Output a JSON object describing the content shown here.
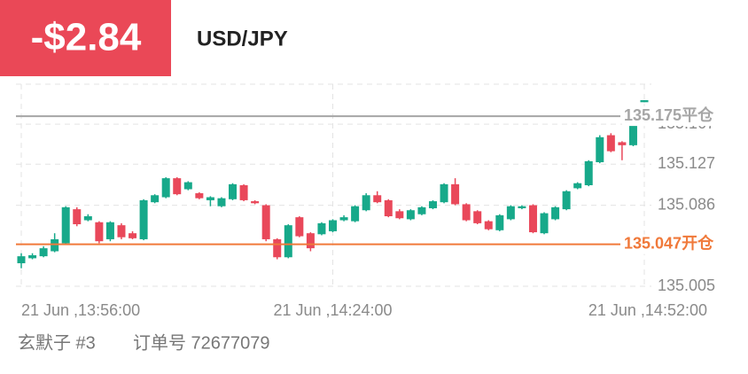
{
  "header": {
    "pnl": "-$2.84",
    "symbol": "USD/JPY"
  },
  "chart_data": {
    "type": "candlestick",
    "categories": [
      "21 Jun ,13:56:00",
      null,
      null,
      null,
      null,
      null,
      null,
      null,
      null,
      null,
      null,
      null,
      null,
      null,
      null,
      null,
      null,
      null,
      null,
      null,
      null,
      null,
      null,
      null,
      null,
      null,
      null,
      null,
      "21 Jun ,14:24:00",
      null,
      null,
      null,
      null,
      null,
      null,
      null,
      null,
      null,
      null,
      null,
      null,
      null,
      null,
      null,
      null,
      null,
      null,
      null,
      null,
      null,
      null,
      null,
      null,
      null,
      null,
      null,
      "21 Jun ,14:52:00"
    ],
    "open": [
      135.028,
      135.033,
      135.035,
      135.04,
      135.048,
      135.082,
      135.071,
      135.069,
      135.052,
      135.066,
      135.058,
      135.052,
      135.089,
      135.094,
      135.113,
      135.102,
      135.098,
      135.091,
      135.085,
      135.092,
      135.106,
      135.09,
      135.086,
      135.052,
      135.034,
      135.074,
      135.058,
      135.057,
      135.06,
      135.071,
      135.07,
      135.081,
      135.096,
      135.091,
      135.08,
      135.072,
      135.077,
      135.083,
      135.089,
      135.107,
      135.087,
      135.08,
      135.07,
      135.061,
      135.072,
      135.083,
      135.086,
      135.058,
      135.072,
      135.082,
      135.103,
      135.106,
      135.129,
      135.156,
      135.149,
      135.146,
      135.189
    ],
    "high": [
      135.038,
      135.038,
      135.045,
      135.058,
      135.085,
      135.084,
      135.077,
      135.07,
      135.07,
      135.068,
      135.06,
      135.092,
      135.097,
      135.114,
      135.114,
      135.11,
      135.099,
      135.095,
      135.094,
      135.108,
      135.107,
      135.091,
      135.087,
      135.053,
      135.067,
      135.075,
      135.059,
      135.069,
      135.072,
      135.076,
      135.086,
      135.098,
      135.1,
      135.092,
      135.082,
      135.082,
      135.085,
      135.091,
      135.108,
      135.113,
      135.088,
      135.081,
      135.071,
      135.077,
      135.086,
      135.086,
      135.087,
      135.079,
      135.085,
      135.101,
      135.109,
      135.131,
      135.156,
      135.158,
      135.15,
      135.168,
      135.191
    ],
    "low": [
      135.023,
      135.032,
      135.034,
      135.039,
      135.047,
      135.065,
      135.07,
      135.048,
      135.05,
      135.052,
      135.052,
      135.051,
      135.088,
      135.093,
      135.096,
      135.101,
      135.092,
      135.085,
      135.084,
      135.091,
      135.09,
      135.087,
      135.05,
      135.032,
      135.033,
      135.054,
      135.04,
      135.056,
      135.059,
      135.07,
      135.069,
      135.08,
      135.088,
      135.074,
      135.072,
      135.071,
      135.076,
      135.082,
      135.088,
      135.086,
      135.07,
      135.067,
      135.061,
      135.06,
      135.071,
      135.082,
      135.058,
      135.057,
      135.071,
      135.081,
      135.102,
      135.105,
      135.128,
      135.139,
      135.131,
      135.145,
      135.189
    ],
    "close": [
      135.035,
      135.036,
      135.043,
      135.052,
      135.084,
      135.067,
      135.075,
      135.05,
      135.069,
      135.054,
      135.053,
      135.091,
      135.096,
      135.113,
      135.097,
      135.109,
      135.093,
      135.094,
      135.093,
      135.107,
      135.091,
      135.088,
      135.052,
      135.034,
      135.066,
      135.055,
      135.043,
      135.068,
      135.071,
      135.074,
      135.085,
      135.096,
      135.089,
      135.075,
      135.073,
      135.081,
      135.084,
      135.09,
      135.107,
      135.087,
      135.071,
      135.068,
      135.062,
      135.076,
      135.085,
      135.085,
      135.059,
      135.078,
      135.084,
      135.1,
      135.108,
      135.13,
      135.154,
      135.14,
      135.146,
      135.167,
      135.191
    ],
    "up_color": "#17a98a",
    "down_color": "#e9485a",
    "ylim": [
      135.005,
      135.207
    ],
    "yticks": [
      135.005,
      135.086,
      135.127,
      135.167
    ],
    "grid": true,
    "lines": [
      {
        "value": 135.175,
        "label": "135.175平仓",
        "color": "#a6a6a6"
      },
      {
        "value": 135.047,
        "label": "135.047开仓",
        "color": "#f0793a"
      }
    ]
  },
  "footer": {
    "account": "玄默子 #3",
    "order": "订单号 72677079"
  }
}
